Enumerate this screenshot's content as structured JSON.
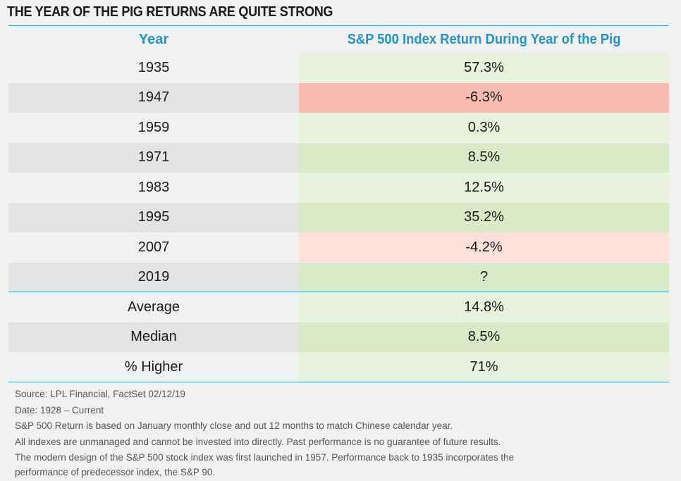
{
  "title": "THE YEAR OF THE PIG RETURNS ARE QUITE STRONG",
  "chart_data": {
    "type": "table",
    "columns": [
      "Year",
      "S&P 500 Index Return During Year of the Pig"
    ],
    "rows": [
      {
        "year": "1935",
        "value": "57.3%",
        "color": "#e8f1dc"
      },
      {
        "year": "1947",
        "value": "-6.3%",
        "color": "#fabcb0"
      },
      {
        "year": "1959",
        "value": "0.3%",
        "color": "#e8f1dc"
      },
      {
        "year": "1971",
        "value": "8.5%",
        "color": "#d9eac6"
      },
      {
        "year": "1983",
        "value": "12.5%",
        "color": "#e8f1dc"
      },
      {
        "year": "1995",
        "value": "35.2%",
        "color": "#d9eac6"
      },
      {
        "year": "2007",
        "value": "-4.2%",
        "color": "#fde0da"
      },
      {
        "year": "2019",
        "value": "?",
        "color": "#d9eac6"
      }
    ],
    "summary": [
      {
        "label": "Average",
        "value": "14.8%",
        "color": "#e8f1dc"
      },
      {
        "label": "Median",
        "value": "8.5%",
        "color": "#d9eac6"
      },
      {
        "label": "% Higher",
        "value": "71%",
        "color": "#e8f1dc"
      }
    ]
  },
  "footnotes": [
    "Source: LPL Financial, FactSet 02/12/19",
    "Date: 1928 – Current",
    "S&P 500 Return is based on January monthly close and out 12 months to match Chinese calendar year.",
    "All indexes are unmanaged and cannot be invested into directly. Past performance is no guarantee of future results.",
    "The modern design of the S&P 500 stock index was first launched in 1957. Performance back to 1935 incorporates the performance of predecessor index, the S&P 90."
  ]
}
